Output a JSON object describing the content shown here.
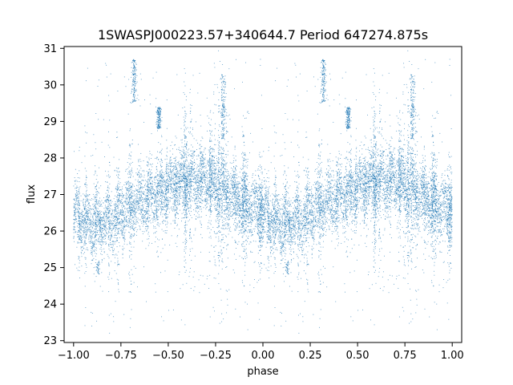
{
  "chart_data": {
    "type": "scatter",
    "title": "1SWASPJ000223.57+340644.7 Period 647274.875s",
    "xlabel": "phase",
    "ylabel": "flux",
    "xlim": [
      -1.05,
      1.05
    ],
    "ylim": [
      22.95,
      31.05
    ],
    "xticks": [
      -1.0,
      -0.75,
      -0.5,
      -0.25,
      0.0,
      0.25,
      0.5,
      0.75,
      1.0
    ],
    "xtick_labels": [
      "−1.00",
      "−0.75",
      "−0.50",
      "−0.25",
      "0.00",
      "0.25",
      "0.50",
      "0.75",
      "1.00"
    ],
    "yticks": [
      23,
      24,
      25,
      26,
      27,
      28,
      29,
      30,
      31
    ],
    "ytick_labels": [
      "23",
      "24",
      "25",
      "26",
      "27",
      "28",
      "29",
      "30",
      "31"
    ],
    "grid": false,
    "legend": "none",
    "marker_color": "#1f77b4",
    "series": [
      {
        "x_range": [
          -1.0,
          1.0
        ],
        "mirrored": true,
        "baseline_flux": [
          {
            "phase": 0.0,
            "flux": 26.4
          },
          {
            "phase": 0.1,
            "flux": 26.2
          },
          {
            "phase": 0.2,
            "flux": 26.3
          },
          {
            "phase": 0.3,
            "flux": 26.7
          },
          {
            "phase": 0.45,
            "flux": 27.0
          },
          {
            "phase": 0.55,
            "flux": 27.3
          },
          {
            "phase": 0.65,
            "flux": 27.4
          },
          {
            "phase": 0.75,
            "flux": 27.3
          },
          {
            "phase": 0.85,
            "flux": 26.9
          },
          {
            "phase": 0.95,
            "flux": 26.6
          },
          {
            "phase": 1.0,
            "flux": 26.5
          }
        ],
        "high_clusters": [
          {
            "phase": 0.32,
            "flux_min": 29.5,
            "flux_max": 30.7
          },
          {
            "phase": 0.45,
            "flux_min": 28.8,
            "flux_max": 29.4
          },
          {
            "phase": 0.79,
            "flux_min": 28.5,
            "flux_max": 30.3
          }
        ],
        "low_clusters": [
          {
            "phase": 0.13,
            "flux_min": 24.8,
            "flux_max": 25.2
          }
        ]
      }
    ]
  }
}
